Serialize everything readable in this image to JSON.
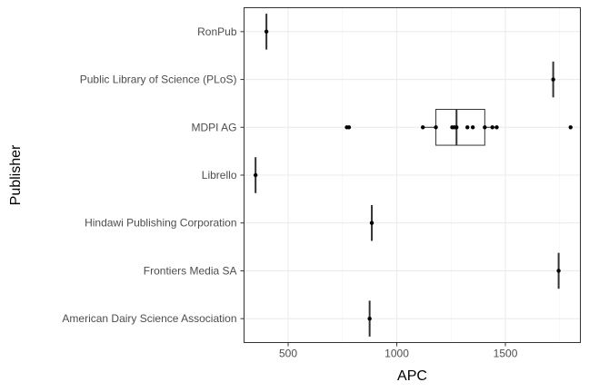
{
  "chart_data": {
    "type": "boxplot",
    "orientation": "horizontal",
    "xlabel": "APC",
    "ylabel": "Publisher",
    "xlim": [
      297,
      1845
    ],
    "x_ticks": [
      500,
      1000,
      1500
    ],
    "grid": true,
    "theme": "bw",
    "categories": [
      "American Dairy Science Association",
      "Frontiers Media SA",
      "Hindawi Publishing Corporation",
      "Librello",
      "MDPI AG",
      "Public Library of Science (PLoS)",
      "RonPub"
    ],
    "boxes": [
      {
        "category": "American Dairy Science Association",
        "min": 875,
        "q1": 875,
        "median": 875,
        "q3": 875,
        "max": 875
      },
      {
        "category": "Frontiers Media SA",
        "min": 1745,
        "q1": 1745,
        "median": 1745,
        "q3": 1745,
        "max": 1745
      },
      {
        "category": "Hindawi Publishing Corporation",
        "min": 885,
        "q1": 885,
        "median": 885,
        "q3": 885,
        "max": 885
      },
      {
        "category": "Librello",
        "min": 350,
        "q1": 350,
        "median": 350,
        "q3": 350,
        "max": 350
      },
      {
        "category": "MDPI AG",
        "min": 1120,
        "q1": 1180,
        "median": 1275,
        "q3": 1405,
        "max": 1460
      },
      {
        "category": "Public Library of Science (PLoS)",
        "min": 1720,
        "q1": 1720,
        "median": 1720,
        "q3": 1720,
        "max": 1720
      },
      {
        "category": "RonPub",
        "min": 400,
        "q1": 400,
        "median": 400,
        "q3": 400,
        "max": 400
      }
    ],
    "points": [
      {
        "category": "American Dairy Science Association",
        "x": 875
      },
      {
        "category": "Frontiers Media SA",
        "x": 1745
      },
      {
        "category": "Hindawi Publishing Corporation",
        "x": 885
      },
      {
        "category": "Librello",
        "x": 350
      },
      {
        "category": "MDPI AG",
        "x": 770
      },
      {
        "category": "MDPI AG",
        "x": 780
      },
      {
        "category": "MDPI AG",
        "x": 1120
      },
      {
        "category": "MDPI AG",
        "x": 1180
      },
      {
        "category": "MDPI AG",
        "x": 1255
      },
      {
        "category": "MDPI AG",
        "x": 1265
      },
      {
        "category": "MDPI AG",
        "x": 1275
      },
      {
        "category": "MDPI AG",
        "x": 1325
      },
      {
        "category": "MDPI AG",
        "x": 1350
      },
      {
        "category": "MDPI AG",
        "x": 1405
      },
      {
        "category": "MDPI AG",
        "x": 1440
      },
      {
        "category": "MDPI AG",
        "x": 1460
      },
      {
        "category": "MDPI AG",
        "x": 1800
      },
      {
        "category": "Public Library of Science (PLoS)",
        "x": 1720
      },
      {
        "category": "RonPub",
        "x": 400
      }
    ]
  }
}
